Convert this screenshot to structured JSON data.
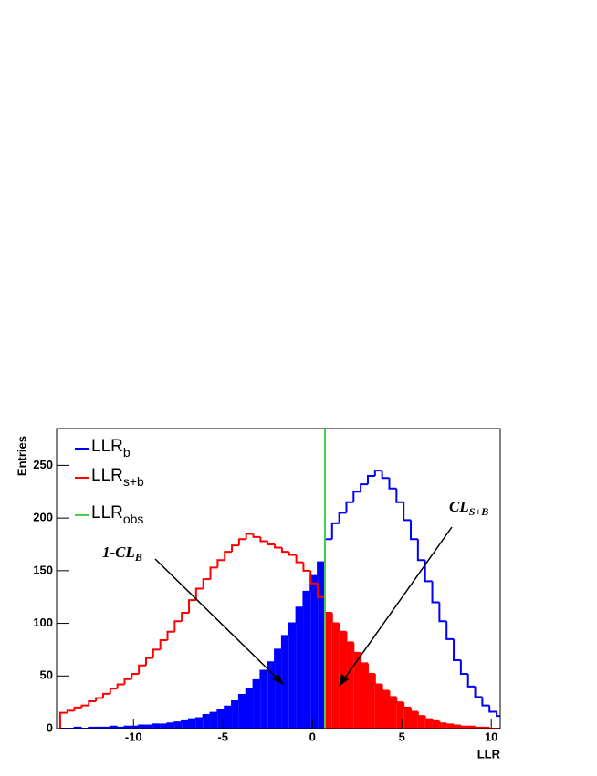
{
  "chart_data": {
    "type": "histogram",
    "xlabel": "LLR",
    "ylabel": "Entries",
    "xlim": [
      -14.3,
      10.5
    ],
    "xticks": [
      -10,
      -5,
      0,
      5,
      10
    ],
    "ylim": [
      0,
      285
    ],
    "yticks": [
      0,
      50,
      100,
      150,
      200,
      250
    ],
    "bins": [
      -14.1,
      -13.7,
      -13.3,
      -12.9,
      -12.5,
      -12.1,
      -11.7,
      -11.3,
      -10.9,
      -10.5,
      -10.1,
      -9.7,
      -9.3,
      -8.9,
      -8.5,
      -8.1,
      -7.7,
      -7.3,
      -6.9,
      -6.5,
      -6.1,
      -5.7,
      -5.3,
      -4.9,
      -4.5,
      -4.1,
      -3.7,
      -3.3,
      -2.9,
      -2.5,
      -2.1,
      -1.7,
      -1.3,
      -0.9,
      -0.5,
      -0.1,
      0.3,
      0.7,
      1.1,
      1.5,
      1.9,
      2.3,
      2.7,
      3.1,
      3.5,
      3.9,
      4.3,
      4.7,
      5.1,
      5.5,
      5.9,
      6.3,
      6.7,
      7.1,
      7.5,
      7.9,
      8.3,
      8.7,
      9.1,
      9.5,
      9.9,
      10.3,
      10.7
    ],
    "series": [
      {
        "name": "LLR",
        "name_subscript": "b",
        "color": "#0000ff",
        "fill_side": "left",
        "values": [
          0,
          0,
          1,
          0,
          1,
          1,
          1,
          2,
          1,
          2,
          2,
          3,
          3,
          4,
          4,
          5,
          6,
          7,
          9,
          10,
          13,
          15,
          18,
          21,
          26,
          32,
          38,
          46,
          55,
          63,
          75,
          88,
          100,
          115,
          130,
          145,
          158,
          180,
          195,
          205,
          215,
          225,
          232,
          240,
          245,
          238,
          228,
          215,
          198,
          180,
          160,
          140,
          120,
          102,
          85,
          65,
          52,
          40,
          30,
          22,
          16,
          12
        ]
      },
      {
        "name": "LLR",
        "name_subscript": "s+b",
        "color": "#ff0000",
        "fill_side": "right",
        "values": [
          15,
          17,
          20,
          22,
          26,
          29,
          33,
          38,
          42,
          47,
          52,
          60,
          67,
          75,
          84,
          92,
          102,
          110,
          122,
          133,
          142,
          153,
          160,
          168,
          174,
          180,
          185,
          182,
          178,
          175,
          172,
          168,
          165,
          158,
          150,
          138,
          125,
          110,
          100,
          92,
          82,
          72,
          62,
          52,
          42,
          36,
          30,
          25,
          20,
          16,
          12,
          9,
          7,
          5,
          4,
          3,
          2,
          2,
          1,
          1,
          0,
          0
        ]
      }
    ],
    "observed": {
      "name": "LLR",
      "name_subscript": "obs",
      "value": 0.7,
      "color": "#4ccc4c"
    },
    "annotations": [
      {
        "text": "1-CL",
        "subscript": "B"
      },
      {
        "text": "CL",
        "subscript": "S+B"
      }
    ]
  }
}
